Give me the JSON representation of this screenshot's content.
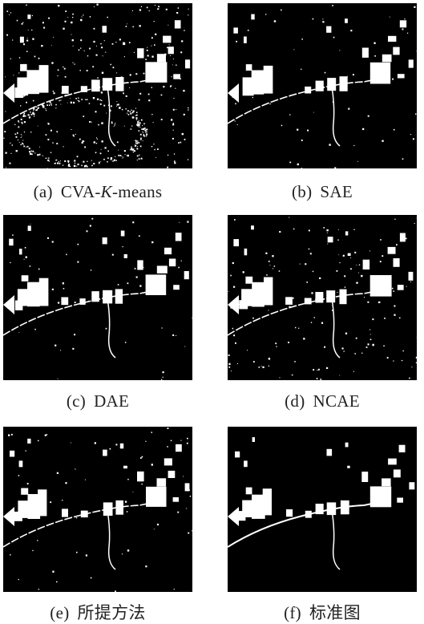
{
  "figure": {
    "panels": [
      {
        "id": "a",
        "tag": "(a)",
        "label_pre": "CVA-",
        "label_italic": "K",
        "label_post": "-means",
        "noise": "high"
      },
      {
        "id": "b",
        "tag": "(b)",
        "label_pre": "SAE",
        "label_italic": "",
        "label_post": "",
        "noise": "low"
      },
      {
        "id": "c",
        "tag": "(c)",
        "label_pre": "DAE",
        "label_italic": "",
        "label_post": "",
        "noise": "low"
      },
      {
        "id": "d",
        "tag": "(d)",
        "label_pre": "NCAE",
        "label_italic": "",
        "label_post": "",
        "noise": "medium"
      },
      {
        "id": "e",
        "tag": "(e)",
        "label_pre": "所提方法",
        "label_italic": "",
        "label_post": "",
        "noise": "low"
      },
      {
        "id": "f",
        "tag": "(f)",
        "label_pre": "标准图",
        "label_italic": "",
        "label_post": "",
        "noise": "none"
      }
    ],
    "colors": {
      "background": "#000000",
      "change": "#ffffff",
      "caption": "#222222"
    }
  }
}
